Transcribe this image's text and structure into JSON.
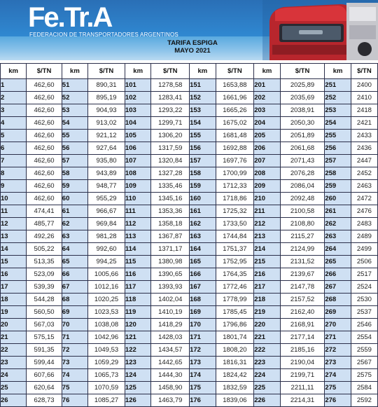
{
  "header": {
    "logo_text": "Fe.Tr.A",
    "organization": "FEDERACION DE TRANSPORTADORES ARGENTINOS",
    "title": "TARIFA ESPIGA",
    "period": "MAYO 2021"
  },
  "colors": {
    "banner_blue": "#2f86cf",
    "km_cell_background": "#cfe0f3",
    "truck_red": "#d8343a"
  },
  "table": {
    "columns": [
      "km",
      "$/TN",
      "km",
      "$/TN",
      "km",
      "$/TN",
      "km",
      "$/TN",
      "km",
      "$/TN",
      "km",
      "$/TN"
    ],
    "rows": [
      [
        "1",
        "462,60",
        "51",
        "890,31",
        "101",
        "1278,58",
        "151",
        "1653,88",
        "201",
        "2025,89",
        "251",
        "2400"
      ],
      [
        "2",
        "462,60",
        "52",
        "895,19",
        "102",
        "1283,41",
        "152",
        "1661,96",
        "202",
        "2035,69",
        "252",
        "2410"
      ],
      [
        "3",
        "462,60",
        "53",
        "904,93",
        "103",
        "1293,22",
        "153",
        "1665,26",
        "203",
        "2038,91",
        "253",
        "2418"
      ],
      [
        "4",
        "462,60",
        "54",
        "913,02",
        "104",
        "1299,71",
        "154",
        "1675,02",
        "204",
        "2050,30",
        "254",
        "2421"
      ],
      [
        "5",
        "462,60",
        "55",
        "921,12",
        "105",
        "1306,20",
        "155",
        "1681,48",
        "205",
        "2051,89",
        "255",
        "2433"
      ],
      [
        "6",
        "462,60",
        "56",
        "927,64",
        "106",
        "1317,59",
        "156",
        "1692,88",
        "206",
        "2061,68",
        "256",
        "2436"
      ],
      [
        "7",
        "462,60",
        "57",
        "935,80",
        "107",
        "1320,84",
        "157",
        "1697,76",
        "207",
        "2071,43",
        "257",
        "2447"
      ],
      [
        "8",
        "462,60",
        "58",
        "943,89",
        "108",
        "1327,28",
        "158",
        "1700,99",
        "208",
        "2076,28",
        "258",
        "2452"
      ],
      [
        "9",
        "462,60",
        "59",
        "948,77",
        "109",
        "1335,46",
        "159",
        "1712,33",
        "209",
        "2086,04",
        "259",
        "2463"
      ],
      [
        "10",
        "462,60",
        "60",
        "955,29",
        "110",
        "1345,16",
        "160",
        "1718,86",
        "210",
        "2092,48",
        "260",
        "2472"
      ],
      [
        "11",
        "474,41",
        "61",
        "966,67",
        "111",
        "1353,36",
        "161",
        "1725,32",
        "211",
        "2100,58",
        "261",
        "2476"
      ],
      [
        "12",
        "485,77",
        "62",
        "969,84",
        "112",
        "1358,18",
        "162",
        "1733,50",
        "212",
        "2108,80",
        "262",
        "2483"
      ],
      [
        "13",
        "492,26",
        "63",
        "981,28",
        "113",
        "1367,87",
        "163",
        "1744,84",
        "213",
        "2115,27",
        "263",
        "2489"
      ],
      [
        "14",
        "505,22",
        "64",
        "992,60",
        "114",
        "1371,17",
        "164",
        "1751,37",
        "214",
        "2124,99",
        "264",
        "2499"
      ],
      [
        "15",
        "513,35",
        "65",
        "994,25",
        "115",
        "1380,98",
        "165",
        "1752,95",
        "215",
        "2131,52",
        "265",
        "2506"
      ],
      [
        "16",
        "523,09",
        "66",
        "1005,66",
        "116",
        "1390,65",
        "166",
        "1764,35",
        "216",
        "2139,67",
        "266",
        "2517"
      ],
      [
        "17",
        "539,39",
        "67",
        "1012,16",
        "117",
        "1393,93",
        "167",
        "1772,46",
        "217",
        "2147,78",
        "267",
        "2524"
      ],
      [
        "18",
        "544,28",
        "68",
        "1020,25",
        "118",
        "1402,04",
        "168",
        "1778,99",
        "218",
        "2157,52",
        "268",
        "2530"
      ],
      [
        "19",
        "560,50",
        "69",
        "1023,53",
        "119",
        "1410,19",
        "169",
        "1785,45",
        "219",
        "2162,40",
        "269",
        "2537"
      ],
      [
        "20",
        "567,03",
        "70",
        "1038,08",
        "120",
        "1418,29",
        "170",
        "1796,86",
        "220",
        "2168,91",
        "270",
        "2546"
      ],
      [
        "21",
        "575,15",
        "71",
        "1042,96",
        "121",
        "1428,03",
        "171",
        "1801,74",
        "221",
        "2177,14",
        "271",
        "2554"
      ],
      [
        "22",
        "591,35",
        "72",
        "1049,53",
        "122",
        "1434,57",
        "172",
        "1808,20",
        "222",
        "2185,16",
        "272",
        "2559"
      ],
      [
        "23",
        "599,44",
        "73",
        "1059,29",
        "123",
        "1442,65",
        "173",
        "1816,31",
        "223",
        "2190,04",
        "273",
        "2567"
      ],
      [
        "24",
        "607,66",
        "74",
        "1065,73",
        "124",
        "1444,30",
        "174",
        "1824,42",
        "224",
        "2199,71",
        "274",
        "2575"
      ],
      [
        "25",
        "620,64",
        "75",
        "1070,59",
        "125",
        "1458,90",
        "175",
        "1832,59",
        "225",
        "2211,11",
        "275",
        "2584"
      ],
      [
        "26",
        "628,73",
        "76",
        "1085,27",
        "126",
        "1463,79",
        "176",
        "1839,06",
        "226",
        "2214,31",
        "276",
        "2592"
      ]
    ]
  }
}
